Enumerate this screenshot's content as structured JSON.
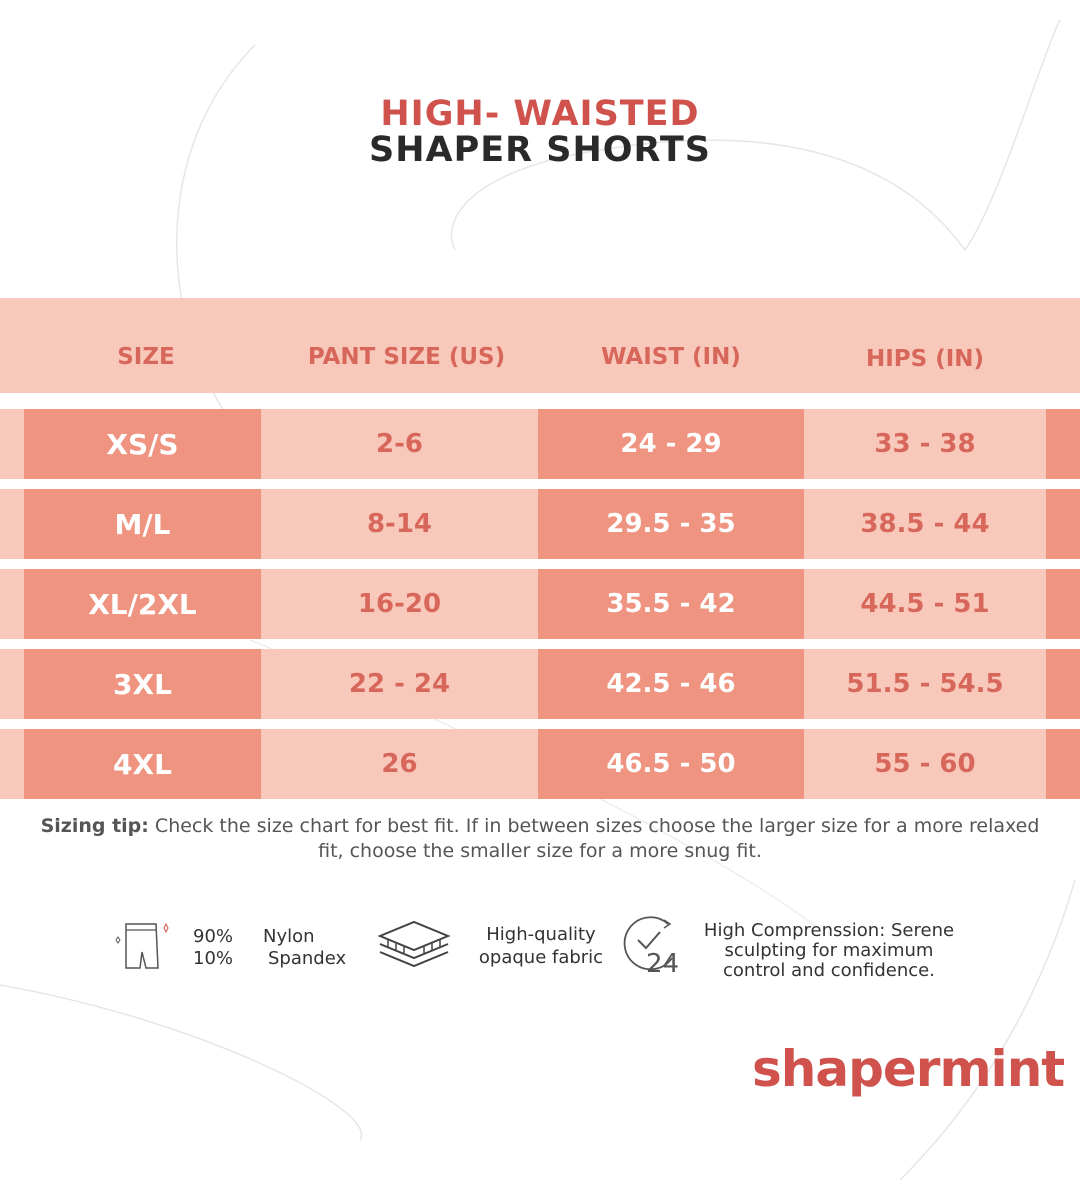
{
  "title": {
    "line1": "HIGH- WAISTED",
    "line2": "SHAPER SHORTS"
  },
  "table": {
    "headers": [
      "SIZE",
      "PANT SIZE (US)",
      "WAIST (IN)",
      "HIPS (IN)"
    ],
    "rows": [
      {
        "size": "XS/S",
        "pant": "2-6",
        "waist": "24 - 29",
        "hips": "33 - 38"
      },
      {
        "size": "M/L",
        "pant": "8-14",
        "waist": "29.5 - 35",
        "hips": "38.5 - 44"
      },
      {
        "size": "XL/2XL",
        "pant": "16-20",
        "waist": "35.5 - 42",
        "hips": "44.5 - 51"
      },
      {
        "size": "3XL",
        "pant": "22 - 24",
        "waist": "42.5 - 46",
        "hips": "51.5 - 54.5"
      },
      {
        "size": "4XL",
        "pant": "26",
        "waist": "46.5 - 50",
        "hips": "55 - 60"
      }
    ]
  },
  "tip": {
    "label": "Sizing tip:",
    "text": " Check the size chart for best fit. If in between sizes choose the larger size for a more relaxed fit, choose the smaller size for a more snug fit."
  },
  "features": {
    "composition": {
      "pct1": "90%",
      "pct2": "10%",
      "mat1": "Nylon",
      "mat2": "Spandex"
    },
    "fabric": {
      "line1": "High-quality",
      "line2": "opaque fabric"
    },
    "compression": {
      "line1": "High Comprenssion: Serene",
      "line2": "sculpting for maximum",
      "line3": "control and confidence.",
      "icon_text": "24"
    }
  },
  "brand": {
    "logo": "shapermint"
  },
  "colors": {
    "accent": "#d0524c",
    "band": "#f8c8ba",
    "cell": "#ef9480"
  }
}
